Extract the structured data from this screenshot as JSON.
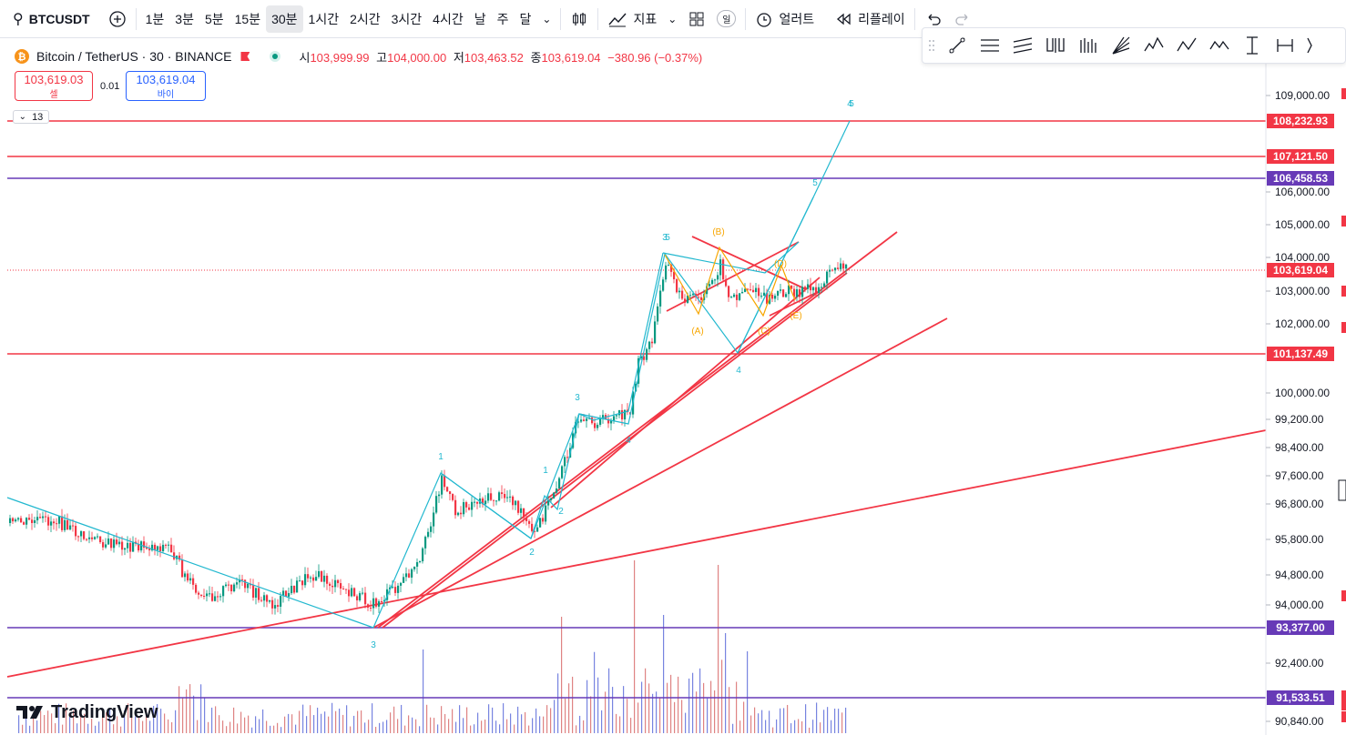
{
  "toolbar": {
    "symbol": "BTCUSDT",
    "intervals": [
      "1분",
      "3분",
      "5분",
      "15분",
      "30분",
      "1시간",
      "2시간",
      "3시간",
      "4시간",
      "날",
      "주",
      "달"
    ],
    "active_interval": "30분",
    "indicators_label": "지표",
    "alert_label": "얼러트",
    "replay_label": "리플레이",
    "layout_badge": "일"
  },
  "legend": {
    "title": "Bitcoin / TetherUS · 30 · BINANCE",
    "open_label": "시",
    "open": "103,999.99",
    "high_label": "고",
    "high": "104,000.00",
    "low_label": "저",
    "low": "103,463.52",
    "close_label": "종",
    "close": "103,619.04",
    "change": "−380.96 (−0.37%)"
  },
  "trade": {
    "sell_price": "103,619.03",
    "sell_label": "셀",
    "spread": "0.01",
    "buy_price": "103,619.04",
    "buy_label": "바이"
  },
  "collapse_count": "13",
  "price_axis": {
    "ticks": [
      "109,000.00",
      "106,000.00",
      "105,000.00",
      "104,000.00",
      "103,000.00",
      "102,000.00",
      "100,000.00",
      "99,200.00",
      "98,400.00",
      "97,600.00",
      "96,800.00",
      "95,800.00",
      "94,800.00",
      "94,000.00",
      "92,400.00",
      "90,840.00"
    ]
  },
  "price_tags": [
    {
      "value": "108,232.93",
      "color": "#f23645"
    },
    {
      "value": "107,121.50",
      "color": "#f23645"
    },
    {
      "value": "106,458.53",
      "color": "#673ab7"
    },
    {
      "value": "103,619.04",
      "color": "#f23645"
    },
    {
      "value": "101,137.49",
      "color": "#f23645"
    },
    {
      "value": "93,377.00",
      "color": "#673ab7"
    },
    {
      "value": "91,533.51",
      "color": "#673ab7"
    }
  ],
  "wave_labels": {
    "teal": [
      "1",
      "2",
      "3",
      "4",
      "1",
      "2",
      "3",
      "4",
      "3",
      "5",
      "4",
      "5",
      "5"
    ],
    "orange": [
      "(A)",
      "(B)",
      "(C)",
      "(D)",
      "(E)"
    ]
  },
  "colors": {
    "up": "#089981",
    "down": "#f23645",
    "trend": "#f23645",
    "wave": "#22b8cf",
    "abc": "#f7a600",
    "purple": "#673ab7"
  },
  "brand": "TradingView"
}
